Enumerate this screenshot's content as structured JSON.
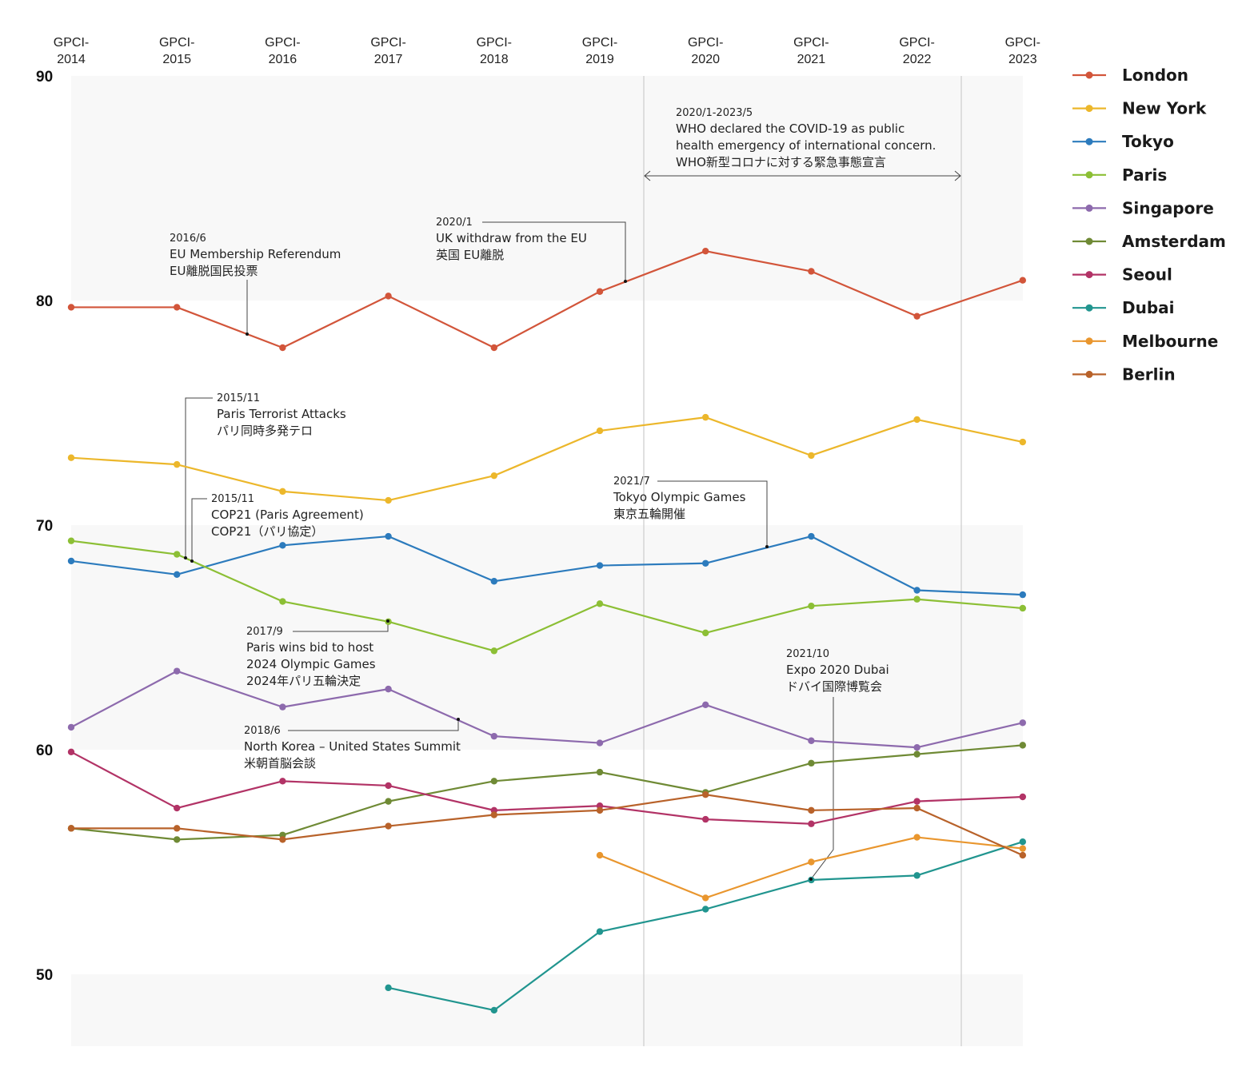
{
  "chart_data": {
    "type": "line",
    "title": "",
    "xlabel": "",
    "ylabel": "",
    "ylim": [
      46.8,
      90
    ],
    "yticks": [
      90,
      80,
      70,
      60,
      50
    ],
    "grid": "alternating shaded bands every 10 units",
    "legend_position": "right",
    "categories": [
      "GPCI-2014",
      "GPCI-2015",
      "GPCI-2016",
      "GPCI-2017",
      "GPCI-2018",
      "GPCI-2019",
      "GPCI-2020",
      "GPCI-2021",
      "GPCI-2022",
      "GPCI-2023"
    ],
    "series": [
      {
        "name": "London",
        "color": "#d2553a",
        "values": [
          79.7,
          79.7,
          77.9,
          80.2,
          77.9,
          80.4,
          82.2,
          81.3,
          79.3,
          80.9
        ]
      },
      {
        "name": "New York",
        "color": "#ecb72b",
        "values": [
          73.0,
          72.7,
          71.5,
          71.1,
          72.2,
          74.2,
          74.8,
          73.1,
          74.7,
          73.7
        ]
      },
      {
        "name": "Tokyo",
        "color": "#2c7bbd",
        "values": [
          68.4,
          67.8,
          69.1,
          69.5,
          67.5,
          68.2,
          68.3,
          69.5,
          67.1,
          66.9
        ]
      },
      {
        "name": "Paris",
        "color": "#8cbf35",
        "values": [
          69.3,
          68.7,
          66.6,
          65.7,
          64.4,
          66.5,
          65.2,
          66.4,
          66.7,
          66.3
        ]
      },
      {
        "name": "Singapore",
        "color": "#8d6aad",
        "values": [
          61.0,
          63.5,
          61.9,
          62.7,
          60.6,
          60.3,
          62.0,
          60.4,
          60.1,
          61.2
        ]
      },
      {
        "name": "Amsterdam",
        "color": "#6f8a35",
        "values": [
          56.5,
          56.0,
          56.2,
          57.7,
          58.6,
          59.0,
          58.1,
          59.4,
          59.8,
          60.2
        ]
      },
      {
        "name": "Seoul",
        "color": "#b23366",
        "values": [
          59.9,
          57.4,
          58.6,
          58.4,
          57.3,
          57.5,
          56.9,
          56.7,
          57.7,
          57.9
        ]
      },
      {
        "name": "Dubai",
        "color": "#21958f",
        "values": [
          null,
          null,
          null,
          49.4,
          48.4,
          51.9,
          52.9,
          54.2,
          54.4,
          55.9
        ]
      },
      {
        "name": "Melbourne",
        "color": "#e9962e",
        "values": [
          null,
          null,
          null,
          null,
          null,
          55.3,
          53.4,
          55.0,
          56.1,
          55.6
        ]
      },
      {
        "name": "Berlin",
        "color": "#b8622a",
        "values": [
          56.5,
          56.5,
          56.0,
          56.6,
          57.1,
          57.3,
          58.0,
          57.3,
          57.4,
          55.3
        ]
      }
    ],
    "period_annotation": {
      "date": "2020/1-2023/5",
      "lines": [
        "WHO declared the COVID-19 as public",
        "health emergency of international concern.",
        "WHO新型コロナに対する緊急事態宣言"
      ]
    },
    "annotations": [
      {
        "id": "eu-ref",
        "date": "2016/6",
        "lines": [
          "EU Membership Referendum",
          "EU離脱国民投票"
        ],
        "series": "London",
        "x": 1.67
      },
      {
        "id": "brexit",
        "date": "2020/1",
        "lines": [
          "UK withdraw from the EU",
          "英国 EU離脱"
        ],
        "series": "London",
        "x": 5.25
      },
      {
        "id": "paris-attacks",
        "date": "2015/11",
        "lines": [
          "Paris Terrorist Attacks",
          "パリ同時多発テロ"
        ],
        "series": "Paris",
        "x": 1.08
      },
      {
        "id": "cop21",
        "date": "2015/11",
        "lines": [
          "COP21 (Paris Agreement)",
          "COP21（パリ協定）"
        ],
        "series": "Paris",
        "x": 1.14
      },
      {
        "id": "tokyo-olympics",
        "date": "2021/7",
        "lines": [
          "Tokyo Olympic Games",
          "東京五輪開催"
        ],
        "series": "Tokyo",
        "x": 6.58
      },
      {
        "id": "paris-bid",
        "date": "2017/9",
        "lines": [
          "Paris wins bid to host",
          "2024 Olympic Games",
          "2024年パリ五輪決定"
        ],
        "series": "Paris",
        "x": 3.0
      },
      {
        "id": "nk-us",
        "date": "2018/6",
        "lines": [
          "North Korea – United States Summit",
          "米朝首脳会談"
        ],
        "series": "Singapore",
        "x": 3.67
      },
      {
        "id": "expo-dubai",
        "date": "2021/10",
        "lines": [
          "Expo 2020 Dubai",
          "ドバイ国際博覧会"
        ],
        "series": "Dubai",
        "x": 7.0
      }
    ]
  }
}
